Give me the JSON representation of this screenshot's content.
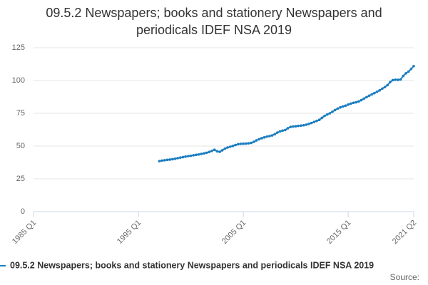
{
  "chart_data": {
    "type": "line",
    "title": "09.5.2 Newspapers; books and stationery Newspapers and periodicals IDEF NSA 2019",
    "source": "Source:",
    "categories": [
      "1985 Q1",
      null,
      null,
      null,
      null,
      null,
      null,
      null,
      null,
      null,
      null,
      null,
      null,
      null,
      null,
      null,
      null,
      null,
      null,
      null,
      null,
      null,
      null,
      null,
      null,
      null,
      null,
      null,
      null,
      null,
      null,
      null,
      null,
      null,
      null,
      null,
      null,
      null,
      null,
      null,
      "1995 Q1",
      null,
      null,
      null,
      null,
      null,
      null,
      null,
      null,
      null,
      null,
      null,
      null,
      null,
      null,
      null,
      null,
      null,
      null,
      null,
      null,
      null,
      null,
      null,
      null,
      null,
      null,
      null,
      null,
      null,
      null,
      null,
      null,
      null,
      null,
      null,
      null,
      null,
      null,
      null,
      "2005 Q1",
      null,
      null,
      null,
      null,
      null,
      null,
      null,
      null,
      null,
      null,
      null,
      null,
      null,
      null,
      null,
      null,
      null,
      null,
      null,
      null,
      null,
      null,
      null,
      null,
      null,
      null,
      null,
      null,
      null,
      null,
      null,
      null,
      null,
      null,
      null,
      null,
      null,
      null,
      null,
      "2015 Q1",
      null,
      null,
      null,
      null,
      null,
      null,
      null,
      null,
      null,
      null,
      null,
      null,
      null,
      null,
      null,
      null,
      null,
      null,
      null,
      null,
      null,
      null,
      null,
      null,
      "2021 Q2"
    ],
    "series": [
      {
        "name": "09.5.2 Newspapers; books and stationery Newspapers and periodicals IDEF NSA 2019",
        "color": "#1a7dc0",
        "values": [
          null,
          null,
          null,
          null,
          null,
          null,
          null,
          null,
          null,
          null,
          null,
          null,
          null,
          null,
          null,
          null,
          null,
          null,
          null,
          null,
          null,
          null,
          null,
          null,
          null,
          null,
          null,
          null,
          null,
          null,
          null,
          null,
          null,
          null,
          null,
          null,
          null,
          null,
          null,
          null,
          null,
          null,
          null,
          null,
          null,
          null,
          null,
          null,
          38.5,
          38.9,
          39.2,
          39.5,
          39.7,
          40.0,
          40.3,
          40.8,
          41.2,
          41.6,
          42.0,
          42.3,
          42.6,
          43.0,
          43.3,
          43.6,
          44.0,
          44.4,
          44.9,
          45.5,
          46.3,
          47.2,
          46.0,
          45.6,
          46.8,
          48.0,
          48.9,
          49.5,
          50.1,
          50.8,
          51.4,
          51.7,
          51.8,
          51.9,
          52.1,
          52.4,
          53.2,
          54.3,
          55.2,
          56.0,
          56.6,
          57.2,
          57.6,
          58.1,
          59.0,
          60.3,
          61.2,
          61.8,
          62.3,
          63.6,
          64.6,
          64.9,
          65.1,
          65.4,
          65.6,
          65.9,
          66.3,
          66.9,
          67.6,
          68.4,
          69.2,
          70.0,
          71.5,
          73.0,
          74.1,
          75.0,
          76.2,
          77.5,
          78.6,
          79.5,
          80.2,
          80.8,
          81.6,
          82.4,
          83.0,
          83.4,
          84.0,
          85.0,
          86.2,
          87.3,
          88.4,
          89.4,
          90.4,
          91.4,
          92.5,
          93.8,
          95.0,
          96.5,
          98.8,
          100.3,
          100.6,
          100.5,
          100.8,
          103.5,
          105.5,
          106.8,
          108.8,
          111.0
        ]
      }
    ],
    "ylim": [
      0,
      125
    ],
    "yticks": [
      0,
      25,
      50,
      75,
      100,
      125
    ],
    "grid": true
  }
}
